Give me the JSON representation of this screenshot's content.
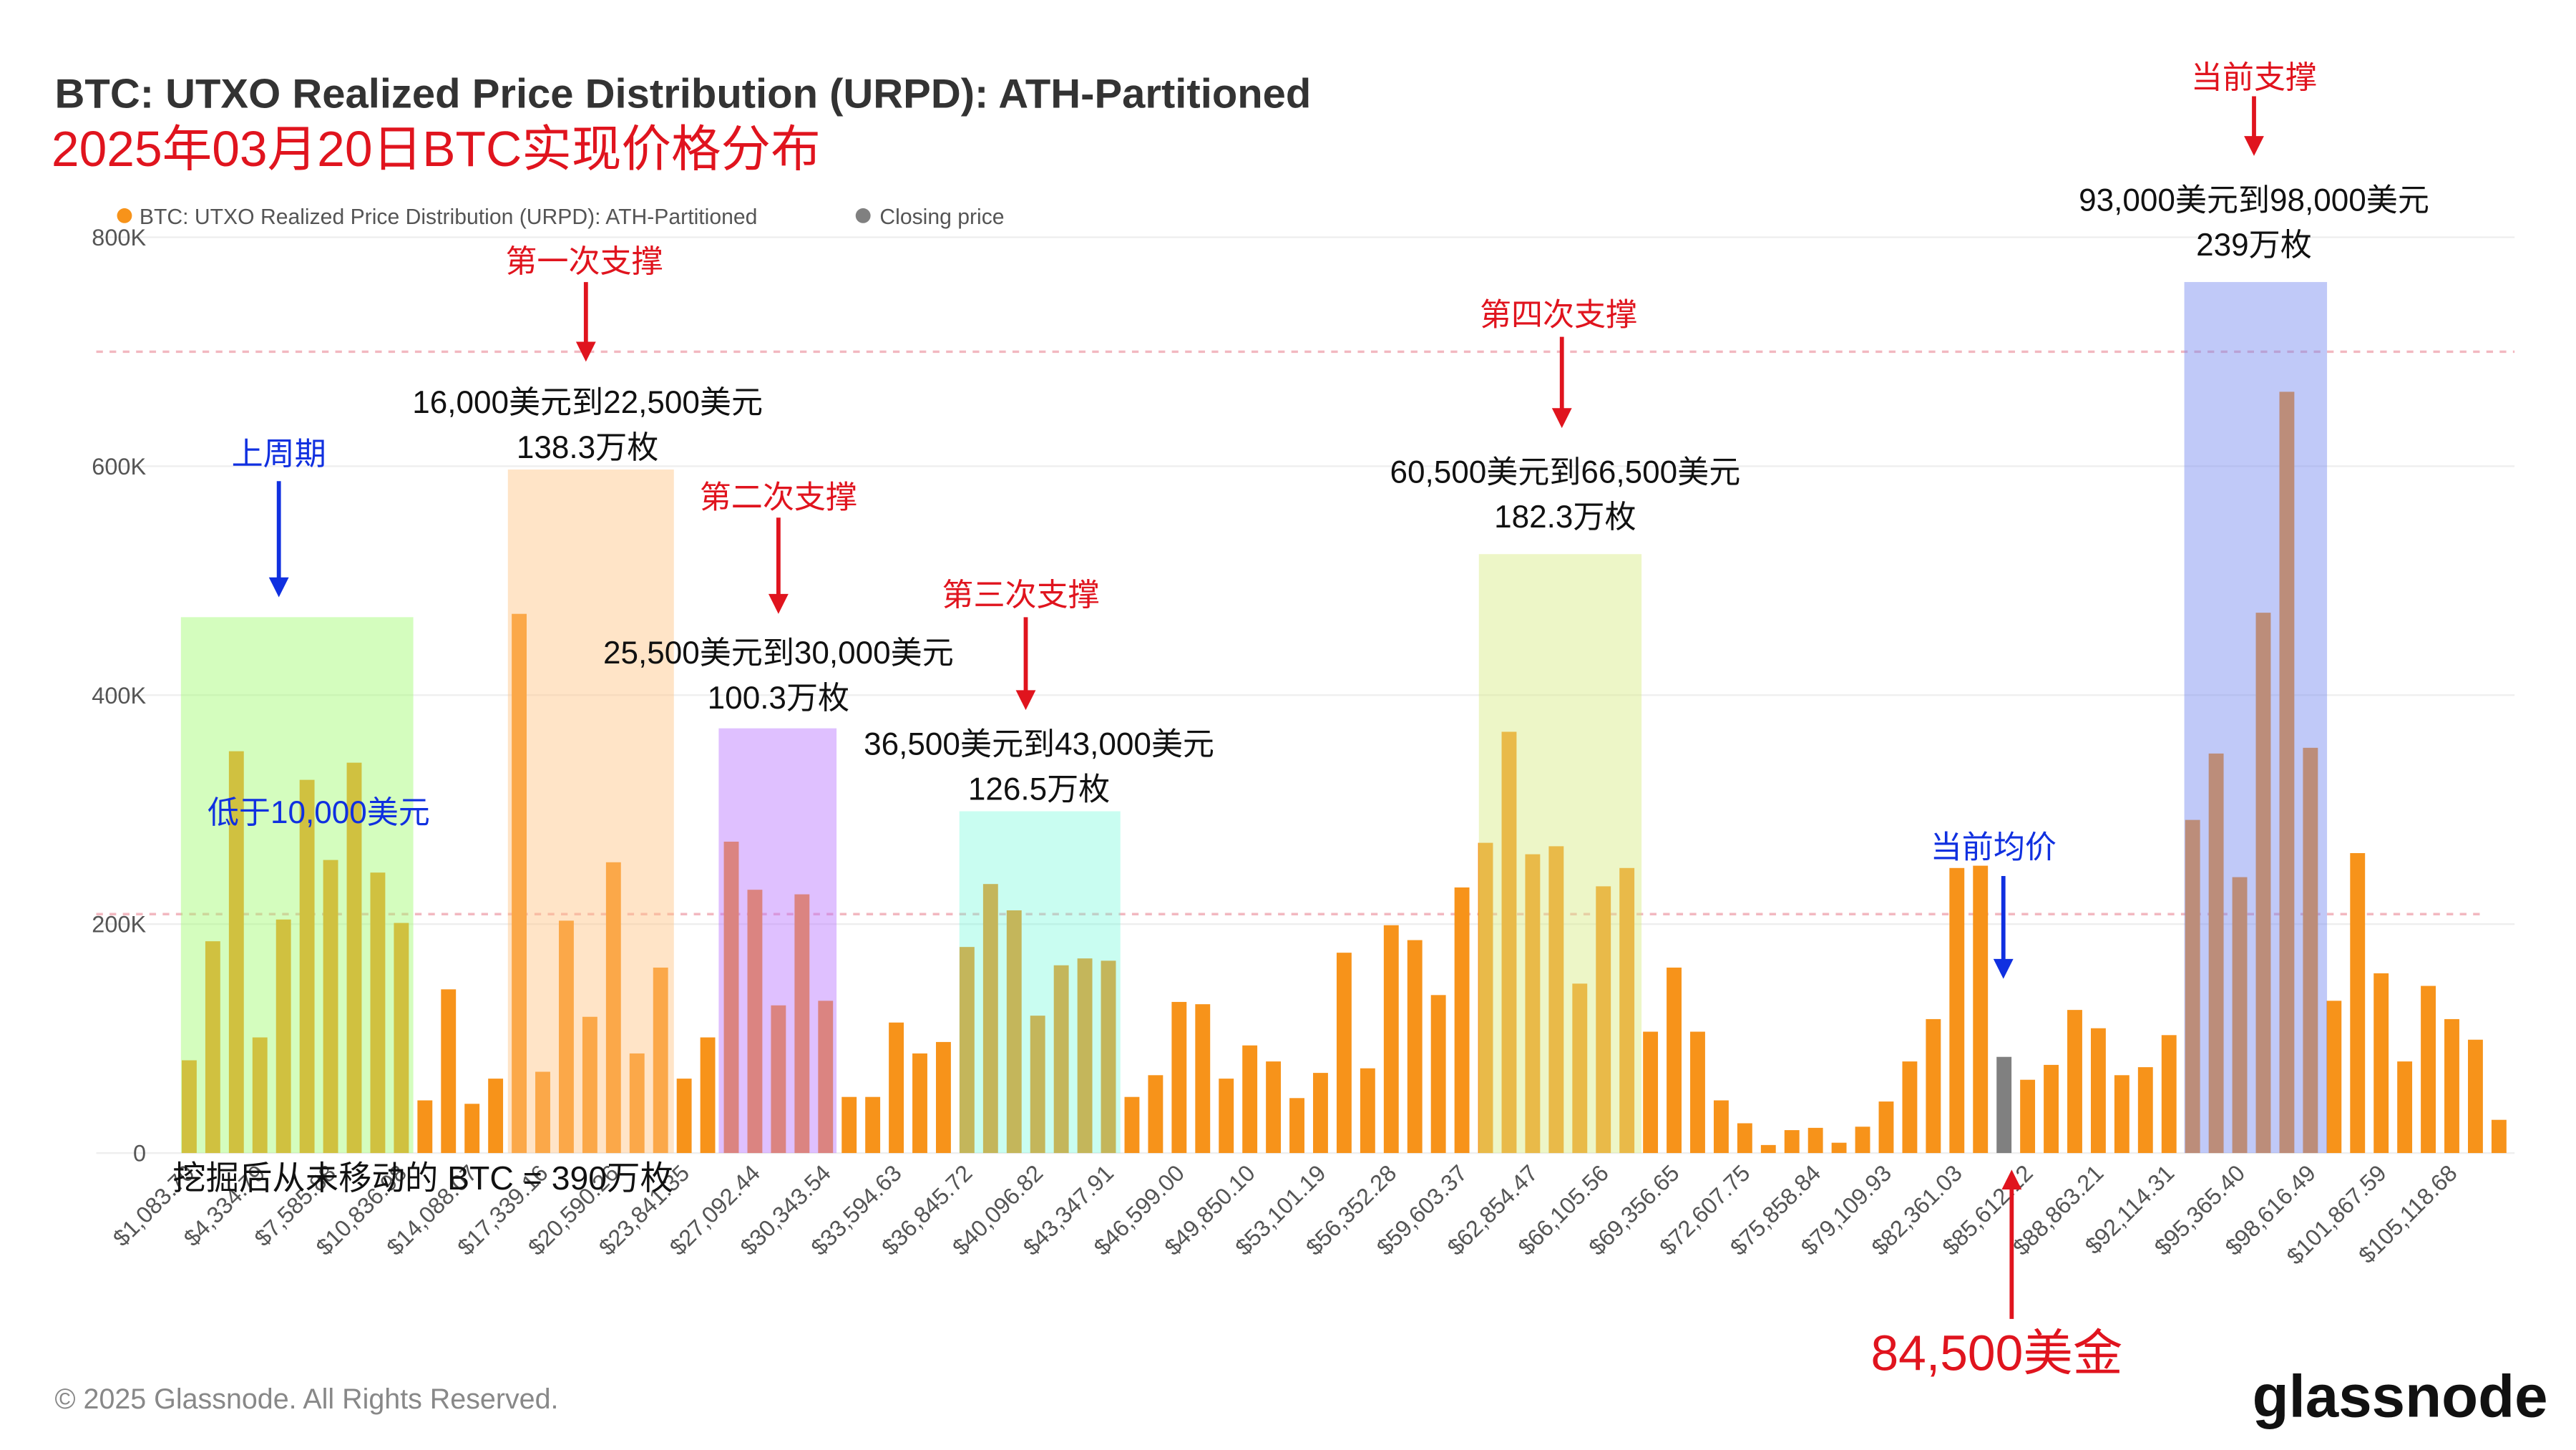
{
  "chart_data": {
    "type": "bar",
    "title": "BTC: UTXO Realized Price Distribution (URPD): ATH-Partitioned",
    "subtitle": "2025年03月20日BTC实现价格分布",
    "categories": [
      "$1,083.70",
      null,
      null,
      "$4,334.79",
      null,
      null,
      "$7,585.88",
      null,
      null,
      "$10,836.98",
      null,
      null,
      "$14,088.07",
      null,
      null,
      "$17,339.16",
      null,
      null,
      "$20,590.26",
      null,
      null,
      "$23,841.35",
      null,
      null,
      "$27,092.44",
      null,
      null,
      "$30,343.54",
      null,
      null,
      "$33,594.63",
      null,
      null,
      "$36,845.72",
      null,
      null,
      "$40,096.82",
      null,
      null,
      "$43,347.91",
      null,
      null,
      "$46,599.00",
      null,
      null,
      "$49,850.10",
      null,
      null,
      "$53,101.19",
      null,
      null,
      "$56,352.28",
      null,
      null,
      "$59,603.37",
      null,
      null,
      "$62,854.47",
      null,
      null,
      "$66,105.56",
      null,
      null,
      "$69,356.65",
      null,
      null,
      "$72,607.75",
      null,
      null,
      "$75,858.84",
      null,
      null,
      "$79,109.93",
      null,
      null,
      "$82,361.03",
      null,
      null,
      "$85,612.12",
      null,
      null,
      "$88,863.21",
      null,
      null,
      "$92,114.31",
      null,
      null,
      "$95,365.40",
      null,
      null,
      "$98,616.49",
      null,
      null,
      "$101,867.59",
      null,
      null,
      "$105,118.68",
      null,
      null
    ],
    "series": [
      {
        "name": "BTC: UTXO Realized Price Distribution (URPD): ATH-Partitioned",
        "color": "#f7931a",
        "values": [
          81000,
          185000,
          351000,
          101000,
          204000,
          326000,
          256000,
          341000,
          245000,
          201000,
          46000,
          143000,
          43000,
          65000,
          471000,
          71000,
          203000,
          119000,
          254000,
          87000,
          162000,
          65000,
          101000,
          272000,
          230000,
          129000,
          226000,
          133000,
          49000,
          49000,
          114000,
          87000,
          97000,
          180000,
          235000,
          212000,
          120000,
          164000,
          170000,
          168000,
          49000,
          68000,
          132000,
          130000,
          65000,
          94000,
          80000,
          48000,
          70000,
          175000,
          74000,
          199000,
          186000,
          138000,
          232000,
          271000,
          368000,
          261000,
          268000,
          148000,
          233000,
          249000,
          106000,
          162000,
          106000,
          46000,
          26000,
          7000,
          20000,
          22000,
          9000,
          23000,
          45000,
          80000,
          117000,
          249000,
          251000,
          null,
          64000,
          77000,
          125000,
          109000,
          68000,
          75000,
          103000,
          291000,
          349000,
          241000,
          472000,
          665000,
          354000,
          133000,
          262000,
          157000,
          80000,
          146000,
          117000,
          99000,
          29000
        ]
      },
      {
        "name": "Closing price",
        "color": "#808080",
        "values": [
          null,
          null,
          null,
          null,
          null,
          null,
          null,
          null,
          null,
          null,
          null,
          null,
          null,
          null,
          null,
          null,
          null,
          null,
          null,
          null,
          null,
          null,
          null,
          null,
          null,
          null,
          null,
          null,
          null,
          null,
          null,
          null,
          null,
          null,
          null,
          null,
          null,
          null,
          null,
          null,
          null,
          null,
          null,
          null,
          null,
          null,
          null,
          null,
          null,
          null,
          null,
          null,
          null,
          null,
          null,
          null,
          null,
          null,
          null,
          null,
          null,
          null,
          null,
          null,
          null,
          null,
          null,
          null,
          null,
          null,
          null,
          null,
          null,
          null,
          null,
          null,
          null,
          84000,
          null,
          null,
          null,
          null,
          null,
          null,
          null,
          null,
          null,
          null,
          null,
          null,
          null,
          null,
          null,
          null,
          null,
          null,
          null,
          null,
          null
        ]
      }
    ],
    "ylim": [
      0,
      800000
    ],
    "yticks": [
      0,
      {
        "value": 200000,
        "label": "200K"
      },
      {
        "value": 400000,
        "label": "400K"
      },
      {
        "value": 600000,
        "label": "600K"
      },
      {
        "value": 800000,
        "label": "800K"
      }
    ],
    "grid": true,
    "legend": "top-left",
    "previous_cycle": {
      "label": "上周期",
      "note": "低于10,000美元"
    },
    "supports": [
      {
        "label": "第一次支撑",
        "range": "16,000美元到22,500美元",
        "amount": "138.3万枚"
      },
      {
        "label": "第二次支撑",
        "range": "25,500美元到30,000美元",
        "amount": "100.3万枚"
      },
      {
        "label": "第三次支撑",
        "range": "36,500美元到43,000美元",
        "amount": "126.5万枚"
      },
      {
        "label": "第四次支撑",
        "range": "60,500美元到66,500美元",
        "amount": "182.3万枚"
      },
      {
        "label": "当前支撑",
        "range": "93,000美元到98,000美元",
        "amount": "239万枚"
      }
    ],
    "current_average": {
      "label": "当前均价",
      "price": "84,500美金"
    },
    "unmoved_note": "挖掘后从未移动的 BTC = 390万枚"
  },
  "footer": {
    "copyright": "© 2025 Glassnode. All Rights Reserved.",
    "brand": "glassnode"
  }
}
